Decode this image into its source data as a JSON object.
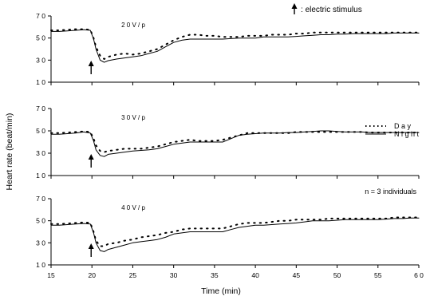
{
  "chart_data": {
    "type": "line",
    "title": "",
    "xlabel": "Time (min)",
    "ylabel": "Heart rate (beat/min)",
    "xlim": [
      15,
      60
    ],
    "xticks": [
      15,
      20,
      25,
      30,
      35,
      40,
      45,
      50,
      55,
      60
    ],
    "ylim": [
      10,
      70
    ],
    "yticks": [
      10,
      30,
      50,
      70
    ],
    "ytick_labels": [
      "1 0",
      "3 0",
      "5 0",
      "7 0"
    ],
    "xtick_labels": [
      "15",
      "20",
      "25",
      "30",
      "35",
      "40",
      "45",
      "50",
      "55",
      "6 0"
    ],
    "stimulus_legend": "electric stimulus",
    "legend": [
      "D a y",
      "N i g h t"
    ],
    "grid": false,
    "panels": [
      {
        "label": "2 0 V / p",
        "annotation": "",
        "stimulus_time": 20,
        "series": [
          {
            "name": "Day",
            "style": "dotted",
            "x": [
              15,
              16,
              17,
              18,
              19,
              19.8,
              20.2,
              20.5,
              21,
              21.5,
              22,
              23,
              24,
              25,
              26,
              27,
              28,
              29,
              30,
              31,
              32,
              33,
              34,
              35,
              36,
              37,
              38,
              39,
              40,
              41,
              42,
              43,
              44,
              45,
              46,
              47,
              48,
              49,
              50,
              51,
              52,
              53,
              54,
              55,
              56,
              57,
              58,
              59,
              60
            ],
            "y": [
              57,
              57,
              57.5,
              58,
              58,
              57.5,
              50,
              42,
              34,
              31,
              33,
              35,
              36,
              35,
              36,
              38,
              40,
              44,
              48,
              51,
              53,
              53,
              52,
              52,
              51,
              51,
              51,
              52,
              52,
              52,
              53,
              53,
              53,
              54,
              54,
              55,
              55,
              55,
              55,
              55,
              55,
              55,
              55,
              55,
              55,
              55,
              55,
              55,
              55
            ]
          },
          {
            "name": "Night",
            "style": "solid",
            "x": [
              15,
              16,
              17,
              18,
              19,
              19.8,
              20.2,
              20.5,
              21,
              21.5,
              22,
              23,
              24,
              25,
              26,
              27,
              28,
              29,
              30,
              31,
              32,
              33,
              34,
              35,
              36,
              37,
              38,
              39,
              40,
              41,
              42,
              43,
              44,
              45,
              46,
              47,
              48,
              49,
              50,
              51,
              52,
              53,
              54,
              55,
              56,
              57,
              58,
              59,
              60
            ],
            "y": [
              56,
              56,
              56.5,
              57,
              57.5,
              57,
              49,
              40,
              30,
              28,
              29.5,
              31,
              32,
              33,
              34,
              36,
              38,
              42,
              46,
              48,
              49,
              49,
              49,
              49,
              49,
              49.5,
              50,
              50,
              50,
              51,
              51,
              51,
              51,
              51.5,
              52,
              52.5,
              53,
              53,
              53.5,
              53.5,
              54,
              54,
              54,
              54,
              54,
              54.5,
              54.5,
              54.5,
              54.5
            ]
          }
        ]
      },
      {
        "label": "3 0 V / p",
        "annotation": "",
        "stimulus_time": 20,
        "series": [
          {
            "name": "Day",
            "style": "dotted",
            "x": [
              15,
              16,
              17,
              18,
              19,
              19.8,
              20.2,
              20.5,
              21,
              21.5,
              22,
              23,
              24,
              25,
              26,
              27,
              28,
              29,
              30,
              31,
              32,
              33,
              34,
              35,
              36,
              37,
              38,
              39,
              40,
              41,
              42,
              43,
              44,
              45,
              46,
              47,
              48,
              49,
              50,
              51,
              52,
              53,
              54,
              55,
              56,
              57,
              58,
              59,
              60
            ],
            "y": [
              48,
              48,
              48.5,
              49,
              49.5,
              49,
              43,
              37,
              32,
              31,
              32,
              33,
              34,
              34,
              34,
              35,
              36,
              38,
              40,
              41,
              42,
              41,
              41,
              41,
              42,
              44,
              46,
              48,
              48,
              48,
              48,
              48,
              48,
              49,
              49,
              49,
              49,
              49,
              49,
              49,
              49,
              49,
              48.5,
              48.5,
              48.5,
              48.5,
              48.5,
              48.5,
              48.5
            ]
          },
          {
            "name": "Night",
            "style": "solid",
            "x": [
              15,
              16,
              17,
              18,
              19,
              19.8,
              20.2,
              20.5,
              21,
              21.5,
              22,
              23,
              24,
              25,
              26,
              27,
              28,
              29,
              30,
              31,
              32,
              33,
              34,
              35,
              36,
              37,
              38,
              39,
              40,
              41,
              42,
              43,
              44,
              45,
              46,
              47,
              48,
              49,
              50,
              51,
              52,
              53,
              54,
              55,
              56,
              57,
              58,
              59,
              60
            ],
            "y": [
              47,
              47,
              47.5,
              48,
              49,
              48,
              41,
              33,
              28,
              27,
              29,
              30,
              31,
              32,
              32.5,
              33,
              34,
              36,
              38,
              39,
              40,
              40,
              40,
              40,
              40,
              43,
              46,
              47,
              47.5,
              48,
              48,
              48,
              48.5,
              48.5,
              49,
              49.5,
              50,
              50,
              49.5,
              49,
              49,
              49,
              48.5,
              48.5,
              48.5,
              48.5,
              48.5,
              48.5,
              48.5
            ]
          }
        ]
      },
      {
        "label": "4 0 V / p",
        "annotation": "n = 3 individuals",
        "stimulus_time": 20,
        "series": [
          {
            "name": "Day",
            "style": "dotted",
            "x": [
              15,
              16,
              17,
              18,
              19,
              19.8,
              20.2,
              20.5,
              21,
              21.5,
              22,
              23,
              24,
              25,
              26,
              27,
              28,
              29,
              30,
              31,
              32,
              33,
              34,
              35,
              36,
              37,
              38,
              39,
              40,
              41,
              42,
              43,
              44,
              45,
              46,
              47,
              48,
              49,
              50,
              51,
              52,
              53,
              54,
              55,
              56,
              57,
              58,
              59,
              60
            ],
            "y": [
              47,
              47,
              47.5,
              48,
              48.5,
              48,
              40,
              32,
              27,
              27,
              29,
              30,
              32,
              33,
              35,
              36,
              37,
              39,
              40,
              42,
              43,
              43,
              43,
              43,
              43,
              45,
              47,
              48,
              48,
              48,
              49,
              50,
              50,
              51,
              51,
              51,
              51,
              52,
              52,
              52,
              52,
              52,
              52,
              52,
              52,
              53,
              53,
              53,
              53
            ]
          },
          {
            "name": "Night",
            "style": "solid",
            "x": [
              15,
              16,
              17,
              18,
              19,
              19.8,
              20.2,
              20.5,
              21,
              21.5,
              22,
              23,
              24,
              25,
              26,
              27,
              28,
              29,
              30,
              31,
              32,
              33,
              34,
              35,
              36,
              37,
              38,
              39,
              40,
              41,
              42,
              43,
              44,
              45,
              46,
              47,
              48,
              49,
              50,
              51,
              52,
              53,
              54,
              55,
              56,
              57,
              58,
              59,
              60
            ],
            "y": [
              46,
              46,
              46.5,
              47,
              47.5,
              47,
              39,
              30,
              23,
              22,
              24,
              26,
              28,
              30,
              31,
              32,
              33,
              35,
              38,
              39,
              40,
              40,
              40,
              40,
              40,
              42,
              44,
              45,
              46,
              46,
              46.5,
              47,
              47.5,
              48,
              49,
              50,
              50,
              50,
              50.5,
              51,
              51,
              51,
              51,
              51,
              51.5,
              52,
              52,
              52.5,
              52.5
            ]
          }
        ]
      }
    ]
  }
}
